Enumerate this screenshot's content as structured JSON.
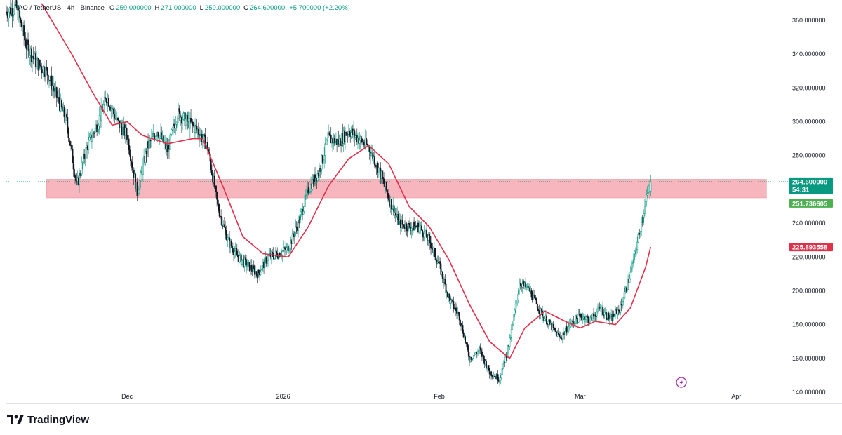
{
  "header": {
    "symbol": "TAO / TetherUS · 4h · Binance",
    "open_label": "O",
    "open": "259.000000",
    "high_label": "H",
    "high": "271.000000",
    "low_label": "L",
    "low": "259.000000",
    "close_label": "C",
    "close": "264.600000",
    "change": "+5.700000 (+2.20%)"
  },
  "footer": {
    "brand": "TradingView"
  },
  "colors": {
    "up": "#089981",
    "down": "#131722",
    "ma": "#e0304a",
    "zone": "#f5a3ad",
    "price_badge": "#089981",
    "ma_badge_green": "#4caf50",
    "ma_badge_red": "#e0304a"
  },
  "chart_data": {
    "type": "candlestick",
    "y_axis_ticks": [
      "360.000000",
      "340.000000",
      "320.000000",
      "300.000000",
      "280.000000",
      "260.000000",
      "240.000000",
      "220.000000",
      "200.000000",
      "180.000000",
      "160.000000",
      "140.000000"
    ],
    "y_tick_values": [
      360,
      340,
      320,
      300,
      280,
      260,
      240,
      220,
      200,
      180,
      160,
      140
    ],
    "ylim": [
      133,
      372
    ],
    "x_axis_labels": [
      "Dec",
      "2026",
      "Feb",
      "Mar",
      "Apr"
    ],
    "x_label_dates": [
      "2025-12-01",
      "2026-01-01",
      "2026-02-01",
      "2026-03-01",
      "2026-04-01"
    ],
    "x_range_dates": [
      "2025-11-07",
      "2026-04-11"
    ],
    "price_path": [
      [
        "2025-11-07",
        365
      ],
      [
        "2025-11-09",
        368
      ],
      [
        "2025-11-11",
        345
      ],
      [
        "2025-11-13",
        335
      ],
      [
        "2025-11-15",
        330
      ],
      [
        "2025-11-17",
        315
      ],
      [
        "2025-11-19",
        300
      ],
      [
        "2025-11-21",
        262
      ],
      [
        "2025-11-23",
        285
      ],
      [
        "2025-11-25",
        298
      ],
      [
        "2025-11-27",
        315
      ],
      [
        "2025-11-29",
        300
      ],
      [
        "2025-12-01",
        292
      ],
      [
        "2025-12-03",
        258
      ],
      [
        "2025-12-05",
        285
      ],
      [
        "2025-12-07",
        295
      ],
      [
        "2025-12-09",
        283
      ],
      [
        "2025-12-11",
        305
      ],
      [
        "2025-12-13",
        300
      ],
      [
        "2025-12-15",
        295
      ],
      [
        "2025-12-17",
        285
      ],
      [
        "2025-12-19",
        250
      ],
      [
        "2025-12-21",
        230
      ],
      [
        "2025-12-23",
        220
      ],
      [
        "2025-12-25",
        215
      ],
      [
        "2025-12-27",
        210
      ],
      [
        "2025-12-29",
        220
      ],
      [
        "2025-12-31",
        222
      ],
      [
        "2026-01-02",
        225
      ],
      [
        "2026-01-04",
        240
      ],
      [
        "2026-01-06",
        260
      ],
      [
        "2026-01-08",
        270
      ],
      [
        "2026-01-10",
        290
      ],
      [
        "2026-01-12",
        288
      ],
      [
        "2026-01-14",
        295
      ],
      [
        "2026-01-16",
        290
      ],
      [
        "2026-01-18",
        285
      ],
      [
        "2026-01-20",
        272
      ],
      [
        "2026-01-22",
        255
      ],
      [
        "2026-01-24",
        240
      ],
      [
        "2026-01-26",
        238
      ],
      [
        "2026-01-28",
        238
      ],
      [
        "2026-01-30",
        230
      ],
      [
        "2026-02-01",
        215
      ],
      [
        "2026-02-03",
        195
      ],
      [
        "2026-02-05",
        185
      ],
      [
        "2026-02-07",
        160
      ],
      [
        "2026-02-09",
        165
      ],
      [
        "2026-02-11",
        152
      ],
      [
        "2026-02-13",
        148
      ],
      [
        "2026-02-15",
        170
      ],
      [
        "2026-02-17",
        205
      ],
      [
        "2026-02-19",
        200
      ],
      [
        "2026-02-21",
        188
      ],
      [
        "2026-02-23",
        180
      ],
      [
        "2026-02-25",
        172
      ],
      [
        "2026-02-27",
        180
      ],
      [
        "2026-03-01",
        185
      ],
      [
        "2026-03-03",
        183
      ],
      [
        "2026-03-05",
        190
      ],
      [
        "2026-03-07",
        183
      ],
      [
        "2026-03-09",
        190
      ],
      [
        "2026-03-11",
        210
      ],
      [
        "2026-03-13",
        238
      ],
      [
        "2026-03-14",
        252
      ],
      [
        "2026-03-15",
        264.6
      ]
    ],
    "ma_path": [
      [
        "2025-11-14",
        370
      ],
      [
        "2025-11-20",
        340
      ],
      [
        "2025-11-24",
        318
      ],
      [
        "2025-11-28",
        298
      ],
      [
        "2025-12-01",
        300
      ],
      [
        "2025-12-04",
        292
      ],
      [
        "2025-12-09",
        287
      ],
      [
        "2025-12-14",
        290
      ],
      [
        "2025-12-16",
        290
      ],
      [
        "2025-12-20",
        262
      ],
      [
        "2025-12-24",
        232
      ],
      [
        "2025-12-28",
        222
      ],
      [
        "2026-01-02",
        220
      ],
      [
        "2026-01-06",
        238
      ],
      [
        "2026-01-10",
        262
      ],
      [
        "2026-01-14",
        278
      ],
      [
        "2026-01-18",
        286
      ],
      [
        "2026-01-22",
        275
      ],
      [
        "2026-01-26",
        250
      ],
      [
        "2026-01-30",
        238
      ],
      [
        "2026-02-03",
        218
      ],
      [
        "2026-02-07",
        192
      ],
      [
        "2026-02-11",
        170
      ],
      [
        "2026-02-15",
        160
      ],
      [
        "2026-02-18",
        178
      ],
      [
        "2026-02-22",
        188
      ],
      [
        "2026-02-26",
        182
      ],
      [
        "2026-03-01",
        178
      ],
      [
        "2026-03-04",
        182
      ],
      [
        "2026-03-08",
        180
      ],
      [
        "2026-03-11",
        190
      ],
      [
        "2026-03-14",
        214
      ],
      [
        "2026-03-15",
        225.9
      ]
    ],
    "resistance_zone": {
      "low": 255,
      "high": 266,
      "start": "2025-11-15",
      "end": "2026-04-07"
    },
    "current_price": 264.6,
    "price_label": "264.600000",
    "countdown": "54:31",
    "ma_green_value": 251.736605,
    "ma_green_label": "251.736605",
    "ma_red_value": 225.893558,
    "ma_red_label": "225.893558"
  }
}
